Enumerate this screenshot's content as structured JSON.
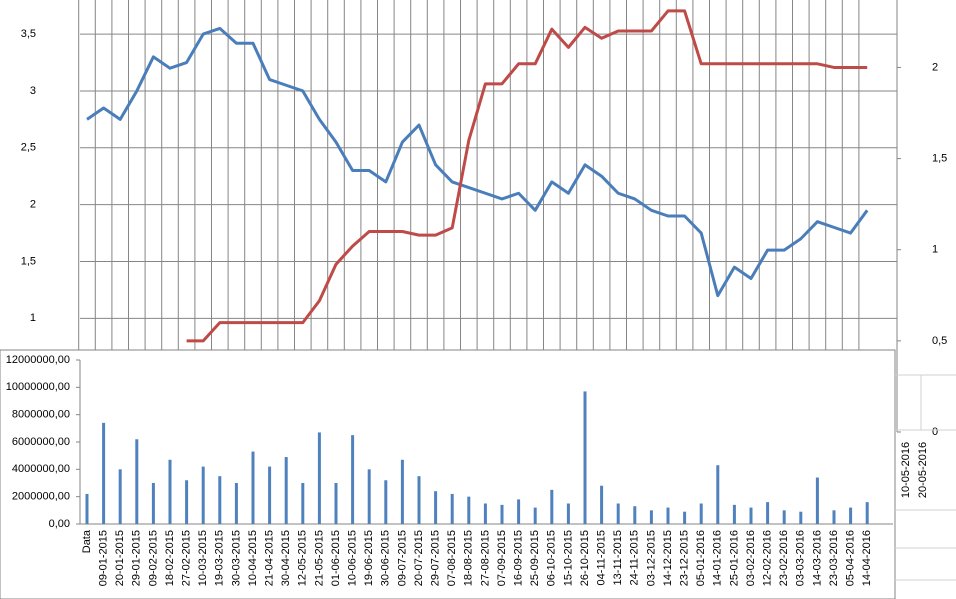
{
  "chart_data": [
    {
      "type": "line",
      "ylim": [
        0,
        3.8
      ],
      "yticks": [
        1,
        {
          "value": 1.5,
          "label": "1,5"
        },
        2,
        {
          "value": 2.5,
          "label": "2,5"
        },
        3,
        {
          "value": 3.5,
          "label": "3,5"
        }
      ],
      "y2lim": [
        0,
        2.37
      ],
      "y2ticks": [
        0,
        {
          "value": 0.5,
          "label": "0,5"
        },
        1,
        {
          "value": 1.5,
          "label": "1,5"
        },
        2
      ],
      "grid": true,
      "series": [
        {
          "color": "#4a7ebb",
          "values": [
            2.75,
            2.85,
            2.75,
            3.0,
            3.3,
            3.2,
            3.25,
            3.5,
            3.55,
            3.42,
            3.42,
            3.1,
            3.05,
            3.0,
            2.75,
            2.55,
            2.3,
            2.3,
            2.2,
            2.55,
            2.7,
            2.35,
            2.2,
            2.15,
            2.1,
            2.05,
            2.1,
            1.95,
            2.2,
            2.1,
            2.35,
            2.25,
            2.1,
            2.05,
            1.95,
            1.9,
            1.9,
            1.75,
            1.2,
            1.45,
            1.35,
            1.6,
            1.6,
            1.7,
            1.85,
            1.8,
            1.75,
            1.95
          ]
        },
        {
          "color": "#be4b48",
          "axis": "y2",
          "values": [
            null,
            null,
            null,
            null,
            null,
            null,
            0.5,
            0.5,
            0.6,
            0.6,
            0.6,
            0.6,
            0.6,
            0.6,
            0.72,
            0.92,
            1.02,
            1.1,
            1.1,
            1.1,
            1.08,
            1.08,
            1.12,
            1.6,
            1.91,
            1.91,
            2.02,
            2.02,
            2.21,
            2.11,
            2.22,
            2.16,
            2.2,
            2.2,
            2.2,
            2.31,
            2.31,
            2.02,
            2.02,
            2.02,
            2.02,
            2.02,
            2.02,
            2.02,
            2.02,
            2.0,
            2.0,
            2.0
          ]
        }
      ]
    },
    {
      "type": "bar",
      "color": "#4f81bd",
      "categories": [
        "Data",
        "09-01-2015",
        "20-01-2015",
        "29-01-2015",
        "09-02-2015",
        "18-02-2015",
        "27-02-2015",
        "10-03-2015",
        "19-03-2015",
        "30-03-2015",
        "10-04-2015",
        "21-04-2015",
        "30-04-2015",
        "12-05-2015",
        "21-05-2015",
        "01-06-2015",
        "10-06-2015",
        "19-06-2015",
        "30-06-2015",
        "09-07-2015",
        "20-07-2015",
        "29-07-2015",
        "07-08-2015",
        "18-08-2015",
        "27-08-2015",
        "07-09-2015",
        "16-09-2015",
        "25-09-2015",
        "06-10-2015",
        "15-10-2015",
        "26-10-2015",
        "04-11-2015",
        "13-11-2015",
        "24-11-2015",
        "03-12-2015",
        "14-12-2015",
        "23-12-2015",
        "05-01-2016",
        "14-01-2016",
        "25-01-2016",
        "03-02-2016",
        "12-02-2016",
        "23-02-2016",
        "03-03-2016",
        "14-03-2016",
        "23-03-2016",
        "05-04-2016",
        "14-04-2016"
      ],
      "values": [
        2200000,
        7400000,
        4000000,
        6200000,
        3000000,
        4700000,
        3200000,
        4200000,
        3500000,
        3000000,
        5300000,
        4200000,
        4900000,
        3000000,
        6700000,
        3000000,
        6500000,
        4000000,
        3200000,
        4700000,
        3500000,
        2400000,
        2200000,
        2000000,
        1500000,
        1400000,
        1800000,
        1200000,
        2500000,
        1500000,
        9700000,
        2800000,
        1500000,
        1300000,
        1000000,
        1200000,
        900000,
        1500000,
        4300000,
        1400000,
        1200000,
        1600000,
        1000000,
        900000,
        3400000,
        1000000,
        1200000,
        1600000
      ],
      "ylim": [
        0,
        12000000
      ],
      "yticks": [
        {
          "value": 0,
          "label": "0,00"
        },
        {
          "value": 2000000,
          "label": "2000000,00"
        },
        {
          "value": 4000000,
          "label": "4000000,00"
        },
        {
          "value": 6000000,
          "label": "6000000,00"
        },
        {
          "value": 8000000,
          "label": "8000000,00"
        },
        {
          "value": 10000000,
          "label": "10000000,00"
        },
        {
          "value": 12000000,
          "label": "12000000,00"
        }
      ],
      "extra_x_labels": [
        "10-05-2016",
        "20-05-2016"
      ]
    }
  ]
}
